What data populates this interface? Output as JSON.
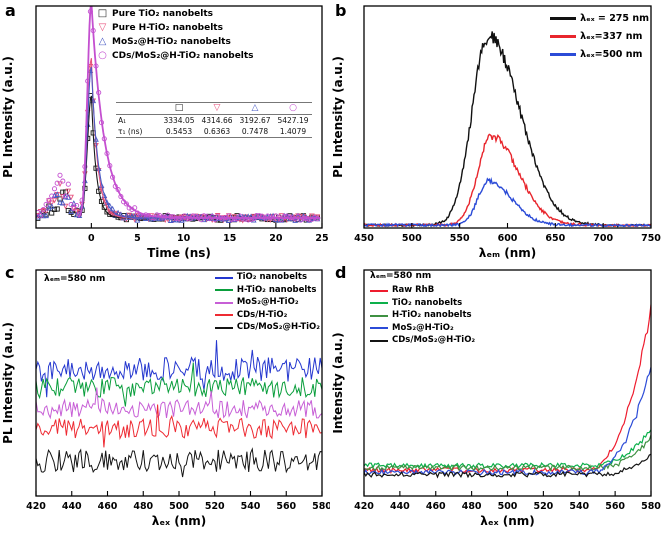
{
  "panels": {
    "a": {
      "letter": "a"
    },
    "b": {
      "letter": "b"
    },
    "c": {
      "letter": "c"
    },
    "d": {
      "letter": "d"
    }
  },
  "chart_data": [
    {
      "id": "a",
      "type": "decay_scatter",
      "xlabel": "Time (ns)",
      "ylabel": "PL Intensity (a.u.)",
      "xlim": [
        -6,
        25
      ],
      "xticks": [
        0,
        5,
        10,
        15,
        20,
        25
      ],
      "yticks": [],
      "grid": false,
      "legend_position": "top-center-right",
      "series": [
        {
          "label": "Pure TiO₂ nanobelts",
          "marker": "square",
          "color": "#1a1a1a",
          "A1": 3334.05,
          "tau1_ns": 0.5453,
          "peak": 0.55,
          "seed": 101
        },
        {
          "label": "Pure H-TiO₂ nanobelts",
          "marker": "triangle-down",
          "color": "#e8517c",
          "A1": 4314.66,
          "tau1_ns": 0.6363,
          "peak": 0.72,
          "seed": 102
        },
        {
          "label": "MoS₂@H-TiO₂ nanobelts",
          "marker": "triangle-up",
          "color": "#4a5bc4",
          "A1": 3192.67,
          "tau1_ns": 0.7478,
          "peak": 0.68,
          "seed": 103
        },
        {
          "label": "CDs/MoS₂@H-TiO₂ nanobelts",
          "marker": "circle",
          "color": "#c44fd0",
          "A1": 5427.19,
          "tau1_ns": 1.4079,
          "peak": 0.97,
          "seed": 104
        }
      ],
      "inset_table": {
        "marker_headers": [
          "□",
          "▽",
          "△",
          "○"
        ],
        "rows": [
          {
            "label": "A₁",
            "values": [
              "3334.05",
              "4314.66",
              "3192.67",
              "5427.19"
            ]
          },
          {
            "label": "τ₁ (ns)",
            "values": [
              "0.5453",
              "0.6363",
              "0.7478",
              "1.4079"
            ]
          }
        ]
      }
    },
    {
      "id": "b",
      "type": "line",
      "xlabel": "λₑₘ (nm)",
      "ylabel": "PL Intensity (a.u.)",
      "xlim": [
        450,
        750
      ],
      "xticks": [
        450,
        500,
        550,
        600,
        650,
        700,
        750
      ],
      "yticks": [],
      "grid": false,
      "legend_position": "top-right",
      "series": [
        {
          "label": "λₑₓ = 275 nm",
          "color": "#111111",
          "peak_nm": 580,
          "rel_intensity": 0.85,
          "width_left_nm": 17,
          "width_right_nm": 33,
          "seed": 201
        },
        {
          "label": "λₑₓ=337 nm",
          "color": "#e8262d",
          "peak_nm": 583,
          "rel_intensity": 0.4,
          "width_left_nm": 14,
          "width_right_nm": 28,
          "seed": 202
        },
        {
          "label": "λₑₓ=500 nm",
          "color": "#2b4bd7",
          "peak_nm": 580,
          "rel_intensity": 0.2,
          "width_left_nm": 11,
          "width_right_nm": 24,
          "seed": 203
        }
      ]
    },
    {
      "id": "c",
      "type": "line",
      "annotation": "λₑₘ=580 nm",
      "xlabel": "λₑₓ (nm)",
      "ylabel": "PL Intensity (a.u.)",
      "xlim": [
        420,
        580
      ],
      "xticks": [
        420,
        440,
        460,
        480,
        500,
        520,
        540,
        560,
        580
      ],
      "yticks": [],
      "grid": false,
      "legend_position": "top-right",
      "series": [
        {
          "label": "TiO₂ nanobelts",
          "color": "#2437cf",
          "level": 0.56,
          "noise": 0.055,
          "seed": 301
        },
        {
          "label": "H-TiO₂ nanobelts",
          "color": "#0a9e3c",
          "level": 0.48,
          "noise": 0.045,
          "seed": 302
        },
        {
          "label": "MoS₂@H-TiO₂",
          "color": "#c75fd6",
          "level": 0.385,
          "noise": 0.04,
          "seed": 303
        },
        {
          "label": "CDs/H-TiO₂",
          "color": "#ee2b33",
          "level": 0.3,
          "noise": 0.045,
          "seed": 304
        },
        {
          "label": "CDs/MoS₂@H-TiO₂",
          "color": "#141414",
          "level": 0.155,
          "noise": 0.05,
          "seed": 305
        }
      ]
    },
    {
      "id": "d",
      "type": "line",
      "annotation": "λₑₘ=580 nm",
      "xlabel": "λₑₓ (nm)",
      "ylabel": "Intensity (a.u.)",
      "xlim": [
        420,
        580
      ],
      "xticks": [
        420,
        440,
        460,
        480,
        500,
        520,
        540,
        560,
        580
      ],
      "yticks": [],
      "grid": false,
      "legend_position": "top-left",
      "series": [
        {
          "label": "Raw RhB",
          "color": "#ee1c2e",
          "baseline": 0.115,
          "value_at_580": 0.82,
          "rise_start_nm": 543,
          "seed": 401
        },
        {
          "label": "TiO₂ nanobelts",
          "color": "#0db04b",
          "baseline": 0.135,
          "value_at_580": 0.3,
          "rise_start_nm": 546,
          "seed": 402
        },
        {
          "label": "H-TiO₂ nanobelts",
          "color": "#3f9142",
          "baseline": 0.125,
          "value_at_580": 0.26,
          "rise_start_nm": 548,
          "seed": 403
        },
        {
          "label": "MoS₂@H-TiO₂",
          "color": "#2b4bd7",
          "baseline": 0.105,
          "value_at_580": 0.57,
          "rise_start_nm": 545,
          "seed": 404
        },
        {
          "label": "CDs/MoS₂@H-TiO₂",
          "color": "#141414",
          "baseline": 0.095,
          "value_at_580": 0.18,
          "rise_start_nm": 549,
          "seed": 405
        }
      ]
    }
  ]
}
